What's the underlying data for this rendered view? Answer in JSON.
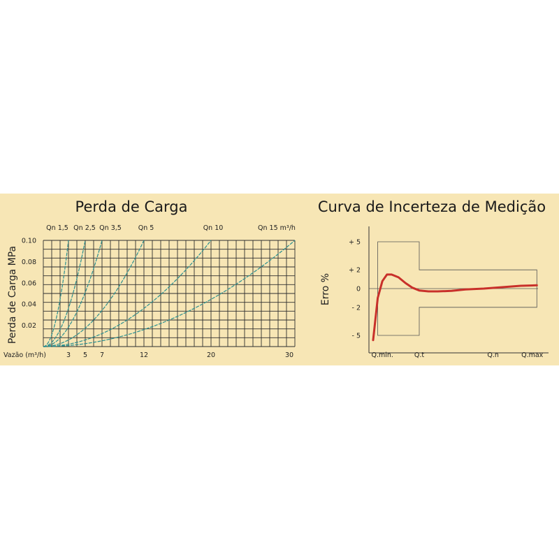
{
  "colors": {
    "background": "#f7e6b5",
    "curve_left": "#2a8f90",
    "curve_right": "#c8302a",
    "grid": "#2e2e2e"
  },
  "chart_data": [
    {
      "type": "line",
      "title": "Perda de Carga",
      "ylabel": "Perda de Carga MPa",
      "xlabel": "Vazão (m³/h)",
      "xlim": [
        0,
        30
      ],
      "ylim": [
        0,
        0.1
      ],
      "x_ticks": [
        3,
        5,
        7,
        12,
        20,
        30
      ],
      "x_tick_labels": [
        "3",
        "5",
        "7",
        "12",
        "20",
        "30"
      ],
      "y_ticks": [
        0.02,
        0.04,
        0.06,
        0.08,
        0.1
      ],
      "y_tick_labels": [
        "0.02",
        "0.04",
        "0.06",
        "0.08",
        "0.10"
      ],
      "grid": true,
      "series": [
        {
          "name": "Qn 1,5",
          "x_at_ymax": 3.0
        },
        {
          "name": "Qn 2,5",
          "x_at_ymax": 5.0
        },
        {
          "name": "Qn 3,5",
          "x_at_ymax": 7.0
        },
        {
          "name": "Qn 5",
          "x_at_ymax": 12.0
        },
        {
          "name": "Qn 10",
          "x_at_ymax": 20.0
        },
        {
          "name": "Qn 15 m³/h",
          "x_at_ymax": 30.0
        }
      ]
    },
    {
      "type": "line",
      "title": "Curva de Incerteza de Medição",
      "ylabel": "Erro %",
      "ylim": [
        -7,
        7
      ],
      "y_ticks": [
        5,
        2,
        0,
        -2,
        -5
      ],
      "y_tick_labels": [
        "+ 5",
        "+ 2",
        "0",
        "- 2",
        "- 5"
      ],
      "x_categories": [
        "Q.min.",
        "Q.t",
        "Q.n",
        "Q.max"
      ],
      "x_category_positions": [
        0.2,
        1.0,
        2.6,
        3.45
      ],
      "envelope": [
        {
          "x_from": 0.1,
          "x_to": 1.0,
          "lower": -5,
          "upper": 5
        },
        {
          "x_from": 1.0,
          "x_to": 3.55,
          "lower": -2,
          "upper": 2
        }
      ],
      "series": [
        {
          "x": [
            0.0,
            0.1,
            0.2,
            0.3,
            0.4,
            0.55,
            0.7,
            0.85,
            1.0,
            1.2,
            1.4,
            1.7,
            2.0,
            2.4,
            2.8,
            3.2,
            3.55
          ],
          "y": [
            -5.5,
            -1.0,
            0.8,
            1.5,
            1.5,
            1.2,
            0.6,
            0.1,
            -0.2,
            -0.3,
            -0.3,
            -0.25,
            -0.1,
            0.0,
            0.15,
            0.3,
            0.35
          ]
        }
      ]
    }
  ]
}
